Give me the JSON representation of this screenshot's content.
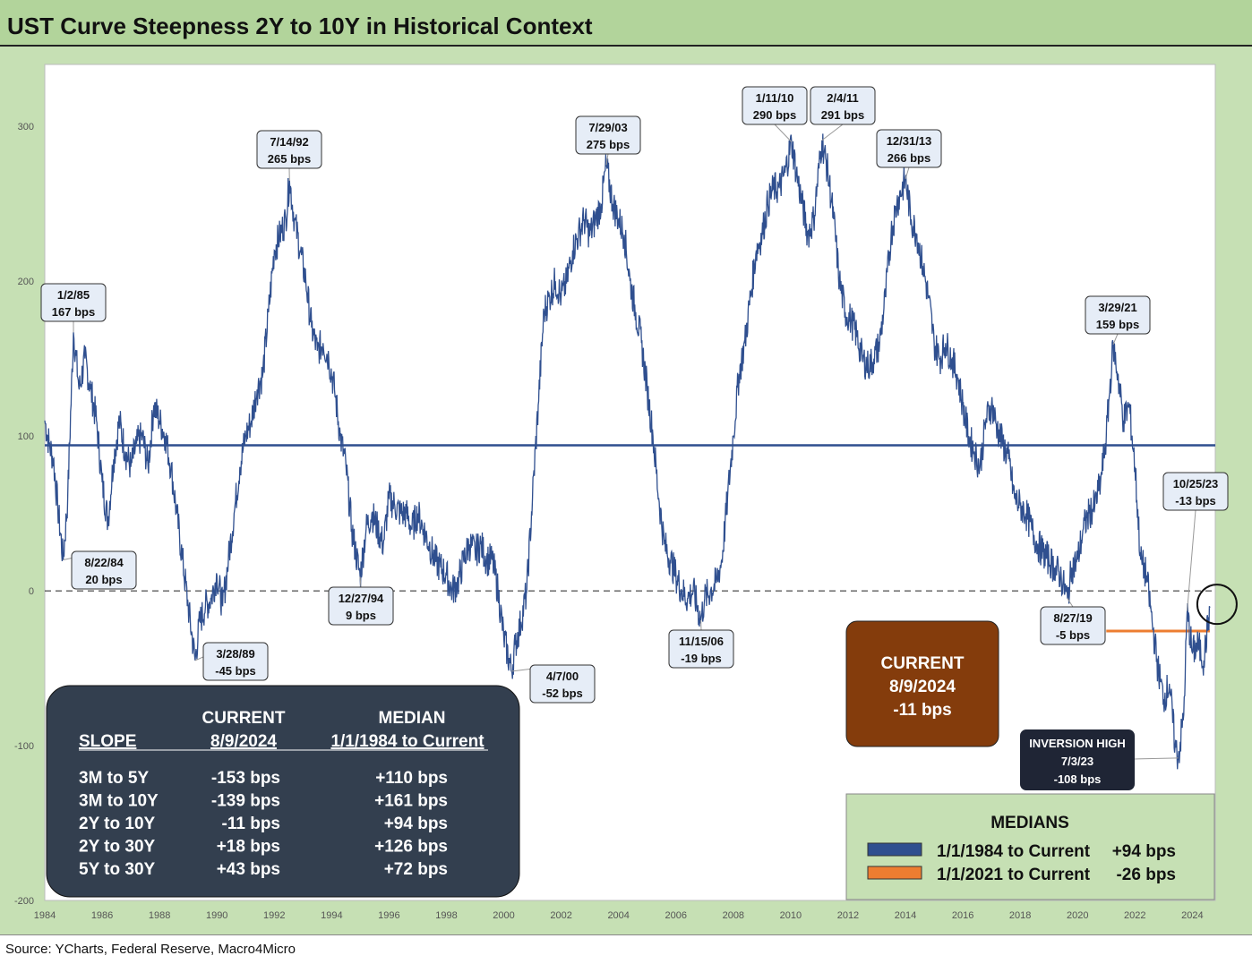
{
  "title": "UST Curve Steepness 2Y to 10Y in Historical Context",
  "source": "Source: YCharts, Federal Reserve, Macro4Micro",
  "colors": {
    "line": "#2f4f8f",
    "median_long": "#2f4f8f",
    "median_short": "#ed7d31",
    "table_bg": "#333f4f",
    "current_bg": "#843c0c",
    "inversion_bg": "#1f2535",
    "legend_bg": "#c6e0b4"
  },
  "chart_data": {
    "type": "line",
    "title": "UST Curve Steepness 2Y to 10Y in Historical Context",
    "xlabel": "",
    "ylabel": "",
    "xlim": [
      1984,
      2024.8
    ],
    "ylim": [
      -200,
      340
    ],
    "yticks": [
      -200,
      -100,
      0,
      100,
      200,
      300
    ],
    "xticks": [
      1984,
      1986,
      1988,
      1990,
      1992,
      1994,
      1996,
      1998,
      2000,
      2002,
      2004,
      2006,
      2008,
      2010,
      2012,
      2014,
      2016,
      2018,
      2020,
      2022,
      2024
    ],
    "series": [
      {
        "values": [
          [
            1984.0,
            110
          ],
          [
            1984.15,
            95
          ],
          [
            1984.3,
            85
          ],
          [
            1984.45,
            55
          ],
          [
            1984.64,
            20
          ],
          [
            1984.8,
            60
          ],
          [
            1985.0,
            167
          ],
          [
            1985.2,
            130
          ],
          [
            1985.4,
            150
          ],
          [
            1985.6,
            130
          ],
          [
            1985.8,
            110
          ],
          [
            1986.0,
            70
          ],
          [
            1986.2,
            45
          ],
          [
            1986.4,
            85
          ],
          [
            1986.6,
            110
          ],
          [
            1986.8,
            90
          ],
          [
            1987.0,
            80
          ],
          [
            1987.2,
            95
          ],
          [
            1987.4,
            100
          ],
          [
            1987.6,
            80
          ],
          [
            1987.8,
            120
          ],
          [
            1988.0,
            110
          ],
          [
            1988.2,
            100
          ],
          [
            1988.4,
            80
          ],
          [
            1988.6,
            50
          ],
          [
            1988.8,
            20
          ],
          [
            1989.0,
            -10
          ],
          [
            1989.24,
            -45
          ],
          [
            1989.4,
            -20
          ],
          [
            1989.6,
            -10
          ],
          [
            1989.8,
            -5
          ],
          [
            1990.0,
            10
          ],
          [
            1990.2,
            -10
          ],
          [
            1990.4,
            20
          ],
          [
            1990.6,
            50
          ],
          [
            1990.8,
            80
          ],
          [
            1991.0,
            100
          ],
          [
            1991.2,
            110
          ],
          [
            1991.4,
            130
          ],
          [
            1991.6,
            140
          ],
          [
            1991.8,
            180
          ],
          [
            1992.0,
            220
          ],
          [
            1992.2,
            230
          ],
          [
            1992.4,
            240
          ],
          [
            1992.53,
            265
          ],
          [
            1992.7,
            240
          ],
          [
            1992.9,
            220
          ],
          [
            1993.1,
            200
          ],
          [
            1993.3,
            170
          ],
          [
            1993.5,
            155
          ],
          [
            1993.7,
            160
          ],
          [
            1993.9,
            150
          ],
          [
            1994.1,
            130
          ],
          [
            1994.3,
            100
          ],
          [
            1994.5,
            80
          ],
          [
            1994.7,
            40
          ],
          [
            1994.99,
            9
          ],
          [
            1995.2,
            40
          ],
          [
            1995.4,
            50
          ],
          [
            1995.6,
            40
          ],
          [
            1995.8,
            30
          ],
          [
            1996.0,
            60
          ],
          [
            1996.2,
            55
          ],
          [
            1996.4,
            50
          ],
          [
            1996.6,
            50
          ],
          [
            1996.8,
            40
          ],
          [
            1997.0,
            50
          ],
          [
            1997.2,
            40
          ],
          [
            1997.4,
            30
          ],
          [
            1997.6,
            20
          ],
          [
            1997.8,
            15
          ],
          [
            1998.0,
            10
          ],
          [
            1998.2,
            0
          ],
          [
            1998.4,
            5
          ],
          [
            1998.6,
            20
          ],
          [
            1998.8,
            30
          ],
          [
            1999.0,
            25
          ],
          [
            1999.2,
            30
          ],
          [
            1999.4,
            20
          ],
          [
            1999.6,
            20
          ],
          [
            1999.8,
            0
          ],
          [
            2000.0,
            -30
          ],
          [
            2000.27,
            -52
          ],
          [
            2000.4,
            -35
          ],
          [
            2000.6,
            -20
          ],
          [
            2000.8,
            0
          ],
          [
            2001.0,
            60
          ],
          [
            2001.2,
            120
          ],
          [
            2001.4,
            180
          ],
          [
            2001.6,
            190
          ],
          [
            2001.8,
            200
          ],
          [
            2002.0,
            190
          ],
          [
            2002.2,
            200
          ],
          [
            2002.4,
            220
          ],
          [
            2002.6,
            230
          ],
          [
            2002.8,
            240
          ],
          [
            2003.0,
            230
          ],
          [
            2003.2,
            240
          ],
          [
            2003.4,
            250
          ],
          [
            2003.57,
            275
          ],
          [
            2003.8,
            250
          ],
          [
            2004.0,
            240
          ],
          [
            2004.2,
            230
          ],
          [
            2004.4,
            200
          ],
          [
            2004.6,
            180
          ],
          [
            2004.8,
            160
          ],
          [
            2005.0,
            130
          ],
          [
            2005.2,
            100
          ],
          [
            2005.4,
            60
          ],
          [
            2005.6,
            30
          ],
          [
            2005.8,
            20
          ],
          [
            2006.0,
            10
          ],
          [
            2006.2,
            0
          ],
          [
            2006.4,
            -5
          ],
          [
            2006.6,
            0
          ],
          [
            2006.87,
            -19
          ],
          [
            2007.0,
            -5
          ],
          [
            2007.2,
            0
          ],
          [
            2007.4,
            5
          ],
          [
            2007.6,
            20
          ],
          [
            2007.8,
            60
          ],
          [
            2008.0,
            100
          ],
          [
            2008.2,
            140
          ],
          [
            2008.4,
            160
          ],
          [
            2008.6,
            190
          ],
          [
            2008.8,
            220
          ],
          [
            2009.0,
            230
          ],
          [
            2009.2,
            250
          ],
          [
            2009.4,
            260
          ],
          [
            2009.6,
            260
          ],
          [
            2009.8,
            270
          ],
          [
            2010.03,
            290
          ],
          [
            2010.2,
            270
          ],
          [
            2010.4,
            250
          ],
          [
            2010.6,
            230
          ],
          [
            2010.8,
            240
          ],
          [
            2011.09,
            291
          ],
          [
            2011.3,
            270
          ],
          [
            2011.5,
            240
          ],
          [
            2011.7,
            200
          ],
          [
            2011.9,
            180
          ],
          [
            2012.1,
            175
          ],
          [
            2012.3,
            165
          ],
          [
            2012.5,
            150
          ],
          [
            2012.7,
            145
          ],
          [
            2012.9,
            150
          ],
          [
            2013.1,
            160
          ],
          [
            2013.3,
            190
          ],
          [
            2013.5,
            230
          ],
          [
            2013.7,
            250
          ],
          [
            2014.0,
            266
          ],
          [
            2014.2,
            240
          ],
          [
            2014.4,
            230
          ],
          [
            2014.6,
            210
          ],
          [
            2014.8,
            190
          ],
          [
            2015.0,
            160
          ],
          [
            2015.2,
            150
          ],
          [
            2015.4,
            160
          ],
          [
            2015.6,
            150
          ],
          [
            2015.8,
            140
          ],
          [
            2016.0,
            120
          ],
          [
            2016.2,
            100
          ],
          [
            2016.4,
            90
          ],
          [
            2016.6,
            80
          ],
          [
            2016.8,
            110
          ],
          [
            2017.0,
            120
          ],
          [
            2017.2,
            105
          ],
          [
            2017.4,
            95
          ],
          [
            2017.6,
            85
          ],
          [
            2017.8,
            60
          ],
          [
            2018.0,
            55
          ],
          [
            2018.2,
            50
          ],
          [
            2018.4,
            40
          ],
          [
            2018.6,
            30
          ],
          [
            2018.8,
            25
          ],
          [
            2019.0,
            20
          ],
          [
            2019.2,
            15
          ],
          [
            2019.4,
            10
          ],
          [
            2019.65,
            -5
          ],
          [
            2019.8,
            15
          ],
          [
            2020.0,
            20
          ],
          [
            2020.2,
            40
          ],
          [
            2020.4,
            50
          ],
          [
            2020.6,
            55
          ],
          [
            2020.8,
            70
          ],
          [
            2021.0,
            100
          ],
          [
            2021.24,
            159
          ],
          [
            2021.4,
            140
          ],
          [
            2021.6,
            110
          ],
          [
            2021.8,
            120
          ],
          [
            2022.0,
            80
          ],
          [
            2022.2,
            20
          ],
          [
            2022.4,
            10
          ],
          [
            2022.6,
            -20
          ],
          [
            2022.8,
            -50
          ],
          [
            2023.0,
            -70
          ],
          [
            2023.2,
            -60
          ],
          [
            2023.4,
            -100
          ],
          [
            2023.51,
            -108
          ],
          [
            2023.7,
            -80
          ],
          [
            2023.82,
            -13
          ],
          [
            2024.0,
            -40
          ],
          [
            2024.2,
            -35
          ],
          [
            2024.4,
            -45
          ],
          [
            2024.61,
            -11
          ]
        ]
      }
    ],
    "reference_lines": [
      {
        "label": "1/1/1984 to Current",
        "value": 94,
        "x_from": 1984,
        "x_to": 2024.61
      },
      {
        "label": "1/1/2021 to Current",
        "value": -26,
        "x_from": 2021.0,
        "x_to": 2024.61
      }
    ],
    "zero_line": 0,
    "grid": false,
    "legend_position": "bottom-right"
  },
  "annotations": [
    {
      "date": "1/2/85",
      "value": "167 bps",
      "x": 1985.0,
      "y": 167
    },
    {
      "date": "8/22/84",
      "value": "20 bps",
      "x": 1984.64,
      "y": 20
    },
    {
      "date": "7/14/92",
      "value": "265 bps",
      "x": 1992.53,
      "y": 265
    },
    {
      "date": "3/28/89",
      "value": "-45 bps",
      "x": 1989.24,
      "y": -45
    },
    {
      "date": "12/27/94",
      "value": "9 bps",
      "x": 1994.99,
      "y": 9
    },
    {
      "date": "7/29/03",
      "value": "275 bps",
      "x": 2003.57,
      "y": 275
    },
    {
      "date": "4/7/00",
      "value": "-52 bps",
      "x": 2000.27,
      "y": -52
    },
    {
      "date": "11/15/06",
      "value": "-19 bps",
      "x": 2006.87,
      "y": -19
    },
    {
      "date": "1/11/10",
      "value": "290 bps",
      "x": 2010.03,
      "y": 290
    },
    {
      "date": "2/4/11",
      "value": "291 bps",
      "x": 2011.09,
      "y": 291
    },
    {
      "date": "12/31/13",
      "value": "266 bps",
      "x": 2014.0,
      "y": 266
    },
    {
      "date": "3/29/21",
      "value": "159 bps",
      "x": 2021.24,
      "y": 159
    },
    {
      "date": "8/27/19",
      "value": "-5 bps",
      "x": 2019.65,
      "y": -5
    },
    {
      "date": "10/25/23",
      "value": "-13 bps",
      "x": 2023.82,
      "y": -13
    }
  ],
  "inversion_box": {
    "line1": "INVERSION HIGH",
    "line2": "7/3/23",
    "line3": "-108 bps",
    "x": 2023.51,
    "y": -108
  },
  "current_box": {
    "line1": "CURRENT",
    "line2": "8/9/2024",
    "line3": "-11 bps"
  },
  "slope_table": {
    "header_current_1": "CURRENT",
    "header_current_2": "8/9/2024",
    "header_median_1": "MEDIAN",
    "header_median_2": "1/1/1984 to Current",
    "header_slope": "SLOPE",
    "rows": [
      {
        "slope": "3M to 5Y",
        "current": "-153 bps",
        "median": "+110 bps"
      },
      {
        "slope": "3M to 10Y",
        "current": "-139 bps",
        "median": "+161 bps"
      },
      {
        "slope": "2Y to 10Y",
        "current": "-11 bps",
        "median": "+94 bps"
      },
      {
        "slope": "2Y to 30Y",
        "current": "+18 bps",
        "median": "+126 bps"
      },
      {
        "slope": "5Y to 30Y",
        "current": "+43 bps",
        "median": "+72 bps"
      }
    ]
  },
  "medians_legend": {
    "title": "MEDIANS",
    "items": [
      {
        "label": "1/1/1984 to Current",
        "value": "+94 bps"
      },
      {
        "label": "1/1/2021 to Current",
        "value": "-26 bps"
      }
    ]
  }
}
